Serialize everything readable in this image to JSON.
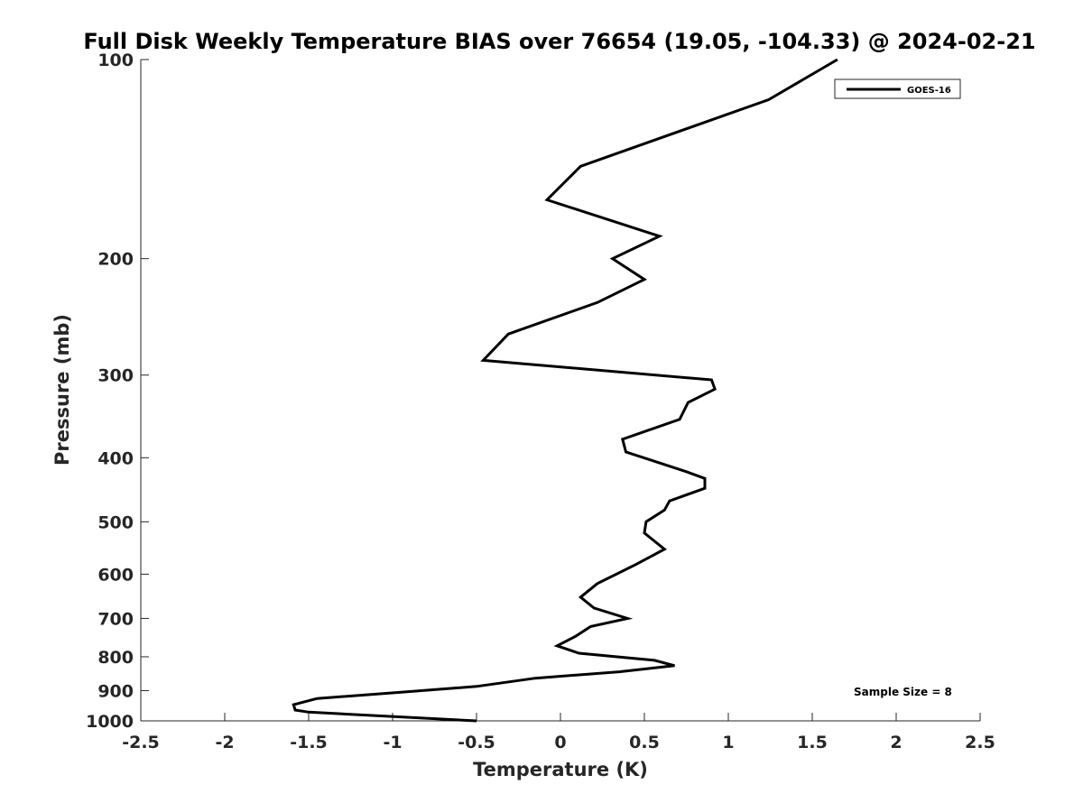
{
  "chart_data": {
    "type": "line",
    "title": "Full Disk Weekly Temperature BIAS over 76654 (19.05, -104.33) @ 2024-02-21",
    "xlabel": "Temperature (K)",
    "ylabel": "Pressure (mb)",
    "xlim": [
      -2.5,
      2.5
    ],
    "ylim": [
      100,
      1000
    ],
    "y_scale": "log",
    "y_reversed": true,
    "x_ticks": [
      -2.5,
      -2,
      -1.5,
      -1,
      -0.5,
      0,
      0.5,
      1,
      1.5,
      2,
      2.5
    ],
    "x_tick_labels": [
      "-2.5",
      "-2",
      "-1.5",
      "-1",
      "-0.5",
      "0",
      "0.5",
      "1",
      "1.5",
      "2",
      "2.5"
    ],
    "y_ticks": [
      100,
      200,
      300,
      400,
      500,
      600,
      700,
      800,
      900,
      1000
    ],
    "y_tick_labels": [
      "100",
      "200",
      "300",
      "400",
      "500",
      "600",
      "700",
      "800",
      "900",
      "1000"
    ],
    "grid": false,
    "legend_position": "top-right",
    "series": [
      {
        "name": "GOES-16",
        "color": "#000000",
        "x": [
          1.65,
          1.24,
          0.12,
          -0.08,
          0.59,
          0.31,
          0.5,
          0.22,
          -0.31,
          -0.46,
          0.9,
          0.92,
          0.76,
          0.71,
          0.37,
          0.39,
          0.75,
          0.86,
          0.86,
          0.65,
          0.62,
          0.51,
          0.5,
          0.62,
          0.45,
          0.22,
          0.12,
          0.2,
          0.4,
          0.18,
          0.09,
          -0.02,
          0.11,
          0.56,
          0.68,
          0.35,
          -0.15,
          -0.5,
          -0.95,
          -1.45,
          -1.59,
          -1.58,
          -1.5,
          -0.5
        ],
        "y": [
          100,
          115,
          145,
          163,
          185,
          200,
          215,
          233,
          260,
          285,
          305,
          315,
          330,
          350,
          375,
          392,
          420,
          430,
          445,
          465,
          480,
          500,
          520,
          550,
          580,
          620,
          650,
          675,
          700,
          720,
          745,
          770,
          790,
          810,
          825,
          843,
          862,
          887,
          905,
          925,
          945,
          963,
          970,
          1000
        ]
      }
    ],
    "annotations": [
      "Sample Size = 8"
    ]
  }
}
